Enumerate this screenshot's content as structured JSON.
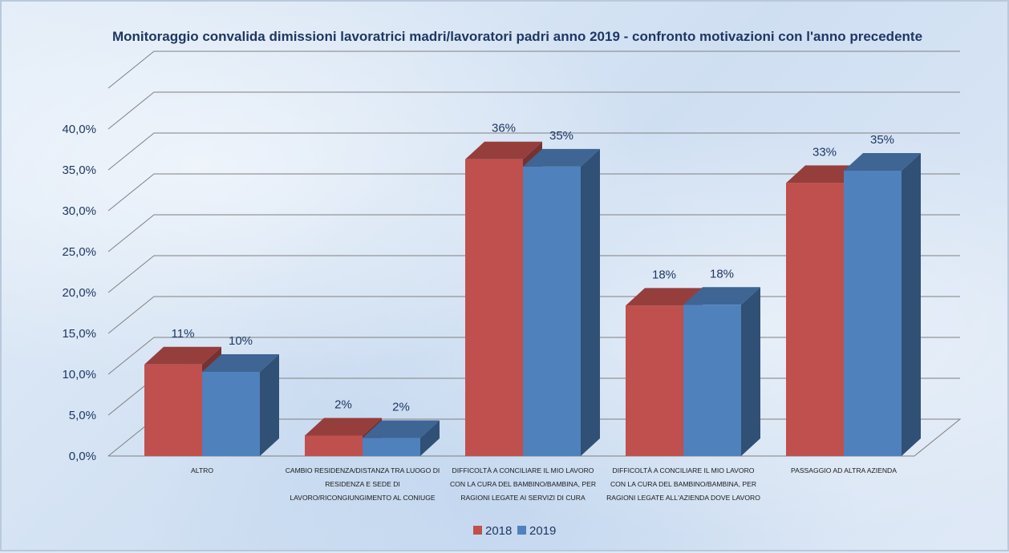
{
  "chart_data": {
    "type": "bar",
    "title": "Monitoraggio convalida dimissioni lavoratrici madri/lavoratori padri anno 2019 - confronto motivazioni con l'anno precedente",
    "categories": [
      [
        "ALTRO"
      ],
      [
        "CAMBIO RESIDENZA/DISTANZA TRA LUOGO DI",
        "RESIDENZA E SEDE DI",
        "LAVORO/RICONGIUNGIMENTO AL CONIUGE"
      ],
      [
        "DIFFICOLTÀ A CONCILIARE IL MIO LAVORO",
        "CON LA CURA DEL BAMBINO/BAMBINA, PER",
        "RAGIONI LEGATE AI SERVIZI DI CURA"
      ],
      [
        "DIFFICOLTÀ A CONCILIARE IL MIO LAVORO",
        "CON LA CURA DEL BAMBINO/BAMBINA, PER",
        "RAGIONI LEGATE ALL'AZIENDA DOVE LAVORO"
      ],
      [
        "PASSAGGIO AD ALTRA AZIENDA"
      ]
    ],
    "series": [
      {
        "name": "2018",
        "values": [
          11.2,
          2.5,
          36.3,
          18.4,
          33.4
        ],
        "labels": [
          "11%",
          "2%",
          "36%",
          "18%",
          "33%"
        ],
        "color": "#c0504d"
      },
      {
        "name": "2019",
        "values": [
          10.3,
          2.2,
          35.4,
          18.5,
          34.9
        ],
        "labels": [
          "10%",
          "2%",
          "35%",
          "18%",
          "35%"
        ],
        "color": "#4f81bd"
      }
    ],
    "yticks": [
      "0,0%",
      "5,0%",
      "10,0%",
      "15,0%",
      "20,0%",
      "25,0%",
      "30,0%",
      "35,0%",
      "40,0%"
    ],
    "ylim": [
      0,
      45
    ],
    "grid": true,
    "legend": "bottom"
  }
}
